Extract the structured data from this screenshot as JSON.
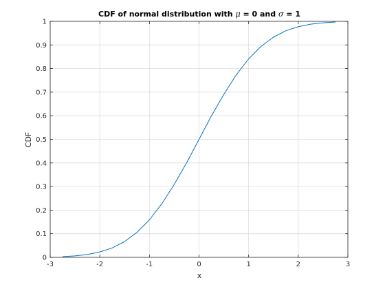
{
  "chart_data": {
    "type": "line",
    "title": {
      "prefix": "CDF of normal distribution with ",
      "mu_symbol": "μ",
      "middle": " = 0 and ",
      "sigma_symbol": "σ",
      "suffix": " = 1"
    },
    "xlabel": "x",
    "ylabel": "CDF",
    "xlim": [
      -3,
      3
    ],
    "ylim": [
      0,
      1
    ],
    "grid": true,
    "xticks": [
      -3,
      -2,
      -1,
      0,
      1,
      2,
      3
    ],
    "xtick_labels": [
      "-3",
      "-2",
      "-1",
      "0",
      "1",
      "2",
      "3"
    ],
    "yticks": [
      0,
      0.1,
      0.2,
      0.3,
      0.4,
      0.5,
      0.6,
      0.7,
      0.8,
      0.9,
      1
    ],
    "ytick_labels": [
      "0",
      "0.1",
      "0.2",
      "0.3",
      "0.4",
      "0.5",
      "0.6",
      "0.7",
      "0.8",
      "0.9",
      "1"
    ],
    "series": [
      {
        "color": "#0072bd",
        "x": [
          -2.75,
          -2.5,
          -2.25,
          -2.0,
          -1.75,
          -1.5,
          -1.25,
          -1.0,
          -0.75,
          -0.5,
          -0.25,
          0.0,
          0.25,
          0.5,
          0.75,
          1.0,
          1.25,
          1.5,
          1.75,
          2.0,
          2.25,
          2.5,
          2.75
        ],
        "y": [
          0.003,
          0.006,
          0.012,
          0.023,
          0.04,
          0.067,
          0.106,
          0.159,
          0.227,
          0.309,
          0.401,
          0.5,
          0.599,
          0.691,
          0.773,
          0.841,
          0.894,
          0.933,
          0.96,
          0.977,
          0.988,
          0.994,
          0.997
        ]
      }
    ]
  }
}
